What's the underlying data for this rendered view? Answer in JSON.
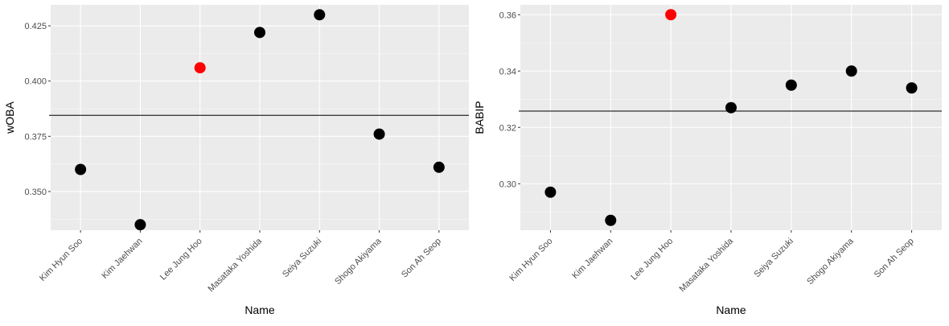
{
  "chart_data": [
    {
      "type": "scatter",
      "title": "",
      "xlabel": "Name",
      "ylabel": "wOBA",
      "categories": [
        "Kim Hyun Soo",
        "Kim Jaehwan",
        "Lee Jung Hoo",
        "Masataka Yoshida",
        "Seiya Suzuki",
        "Shogo Akiyama",
        "Son Ah Seop"
      ],
      "values": [
        0.36,
        0.335,
        0.406,
        0.422,
        0.43,
        0.376,
        0.361
      ],
      "highlight_index": 2,
      "point_color": "#000000",
      "highlight_color": "#ff0000",
      "reference_line": 0.3845,
      "ylim": [
        0.3325,
        0.4345
      ],
      "yticks": [
        0.35,
        0.375,
        0.4,
        0.425
      ],
      "ytick_labels": [
        "0.350",
        "0.375",
        "0.400",
        "0.425"
      ],
      "grid": true,
      "panel_background": "#ebebeb"
    },
    {
      "type": "scatter",
      "title": "",
      "xlabel": "Name",
      "ylabel": "BABIP",
      "categories": [
        "Kim Hyun Soo",
        "Kim Jaehwan",
        "Lee Jung Hoo",
        "Masataka Yoshida",
        "Seiya Suzuki",
        "Shogo Akiyama",
        "Son Ah Seop"
      ],
      "values": [
        0.297,
        0.287,
        0.36,
        0.327,
        0.335,
        0.34,
        0.334
      ],
      "highlight_index": 2,
      "point_color": "#000000",
      "highlight_color": "#ff0000",
      "reference_line": 0.3258,
      "ylim": [
        0.2835,
        0.3635
      ],
      "yticks": [
        0.3,
        0.32,
        0.34,
        0.36
      ],
      "ytick_labels": [
        "0.30",
        "0.32",
        "0.34",
        "0.36"
      ],
      "grid": true,
      "panel_background": "#ebebeb"
    }
  ]
}
